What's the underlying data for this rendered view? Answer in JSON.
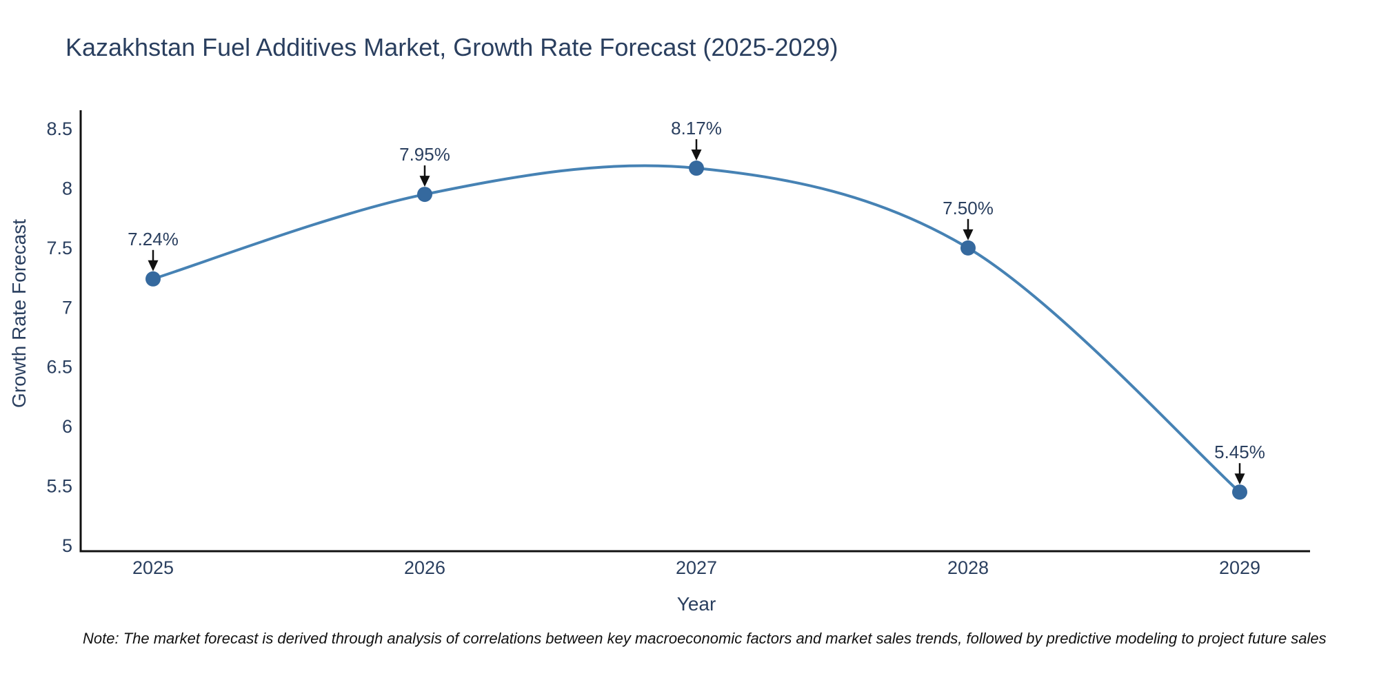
{
  "title": "Kazakhstan Fuel Additives Market, Growth Rate Forecast (2025-2029)",
  "note": "Note: The market forecast is derived through analysis of correlations between key macroeconomic factors and market sales trends, followed by predictive modeling to project future sales",
  "chart_data": {
    "type": "line",
    "title": "Kazakhstan Fuel Additives Market, Growth Rate Forecast (2025-2029)",
    "xlabel": "Year",
    "ylabel": "Growth Rate Forecast",
    "categories": [
      "2025",
      "2026",
      "2027",
      "2028",
      "2029"
    ],
    "values": [
      7.24,
      7.95,
      8.17,
      7.5,
      5.45
    ],
    "point_labels": [
      "7.24%",
      "7.95%",
      "8.17%",
      "7.50%",
      "5.45%"
    ],
    "yticks": [
      "5",
      "5.5",
      "6",
      "6.5",
      "7",
      "7.5",
      "8",
      "8.5"
    ],
    "ytick_values": [
      5,
      5.5,
      6,
      6.5,
      7,
      7.5,
      8,
      8.5
    ],
    "ylim": [
      5,
      8.5
    ],
    "line_shape": "spline",
    "grid": false,
    "legend": false,
    "colors": {
      "line": "#4682b4",
      "marker": "#35699e",
      "axis": "#111111",
      "text": "#2a3f5f",
      "annotation_arrow": "#111111",
      "background": "#ffffff"
    }
  }
}
